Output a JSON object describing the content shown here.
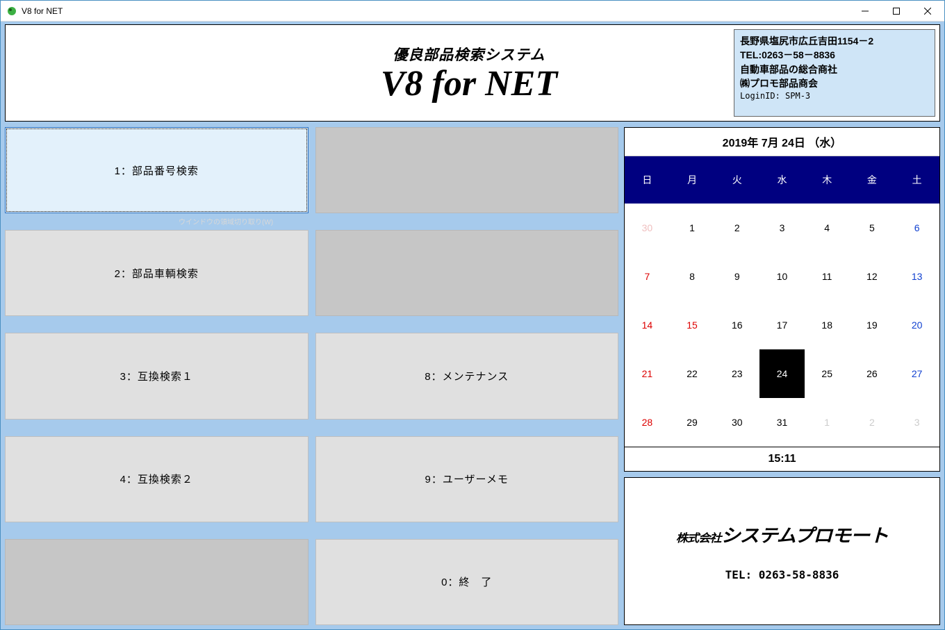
{
  "titlebar": {
    "title": "V8 for NET"
  },
  "header": {
    "subtitle": "優良部品検索システム",
    "maintitle": "V8 for NET"
  },
  "info": {
    "line1": "長野県塩尻市広丘吉田1154－2",
    "line2": "TEL:0263－58－8836",
    "line3": "自動車部品の総合商社",
    "line4": "㈱プロモ部品商会",
    "login": "LoginID: SPM-3"
  },
  "hint_text": "ウインドウの領域切り取り(W)",
  "menu": {
    "b1": "1：部品番号検索",
    "b2": "2：部品車輌検索",
    "b3": "3：互換検索１",
    "b4": "4：互換検索２",
    "b8": "8：メンテナンス",
    "b9": "9：ユーザーメモ",
    "b0": "0：終　了"
  },
  "calendar": {
    "title": "2019年 7月 24日 （水）",
    "dow": {
      "d0": "日",
      "d1": "月",
      "d2": "火",
      "d3": "水",
      "d4": "木",
      "d5": "金",
      "d6": "土"
    },
    "cells": [
      {
        "n": "30",
        "cls": "other sun"
      },
      {
        "n": "1",
        "cls": ""
      },
      {
        "n": "2",
        "cls": ""
      },
      {
        "n": "3",
        "cls": ""
      },
      {
        "n": "4",
        "cls": ""
      },
      {
        "n": "5",
        "cls": ""
      },
      {
        "n": "6",
        "cls": "sat"
      },
      {
        "n": "7",
        "cls": "sun"
      },
      {
        "n": "8",
        "cls": ""
      },
      {
        "n": "9",
        "cls": ""
      },
      {
        "n": "10",
        "cls": ""
      },
      {
        "n": "11",
        "cls": ""
      },
      {
        "n": "12",
        "cls": ""
      },
      {
        "n": "13",
        "cls": "sat"
      },
      {
        "n": "14",
        "cls": "sun"
      },
      {
        "n": "15",
        "cls": "sun"
      },
      {
        "n": "16",
        "cls": ""
      },
      {
        "n": "17",
        "cls": ""
      },
      {
        "n": "18",
        "cls": ""
      },
      {
        "n": "19",
        "cls": ""
      },
      {
        "n": "20",
        "cls": "sat"
      },
      {
        "n": "21",
        "cls": "sun"
      },
      {
        "n": "22",
        "cls": ""
      },
      {
        "n": "23",
        "cls": ""
      },
      {
        "n": "24",
        "cls": "today"
      },
      {
        "n": "25",
        "cls": ""
      },
      {
        "n": "26",
        "cls": ""
      },
      {
        "n": "27",
        "cls": "sat"
      },
      {
        "n": "28",
        "cls": "sun"
      },
      {
        "n": "29",
        "cls": ""
      },
      {
        "n": "30",
        "cls": ""
      },
      {
        "n": "31",
        "cls": ""
      },
      {
        "n": "1",
        "cls": "other"
      },
      {
        "n": "2",
        "cls": "other"
      },
      {
        "n": "3",
        "cls": "other"
      }
    ],
    "time": "15:11"
  },
  "company": {
    "logo_small": "株式会社",
    "logo_main": "システムプロモート",
    "tel": "TEL: 0263-58-8836"
  },
  "colors": {
    "client_bg": "#a6caec",
    "info_bg": "#cfe5f7",
    "selected_bg": "#e3f1fb",
    "cal_header_bg": "#000080"
  }
}
